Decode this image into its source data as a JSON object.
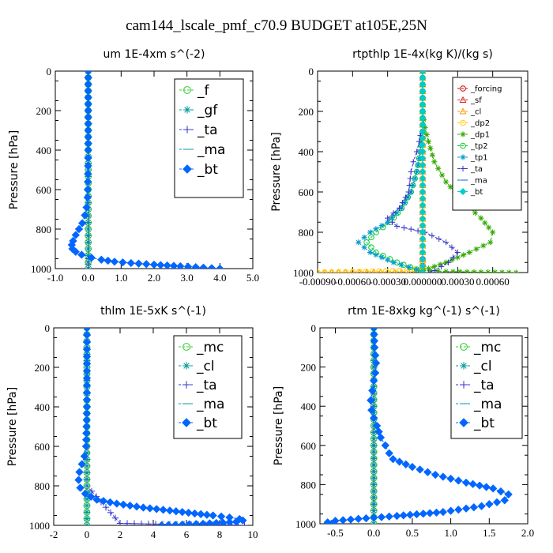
{
  "page": {
    "title": "cam144_lscale_pmf_c70.9  BUDGET at105E,25N"
  },
  "chart_data": [
    {
      "type": "line",
      "title": "um  1E-4xm s^(-2)",
      "ylabel": "Pressure [hPa]",
      "xlim": [
        -1.0,
        5.0
      ],
      "ylim": [
        1000,
        0
      ],
      "xticks": [
        "-1.0",
        "0.0",
        "1.0",
        "2.0",
        "3.0",
        "4.0",
        "5.0"
      ],
      "xtick_values": [
        -1,
        0,
        1,
        2,
        3,
        4,
        5
      ],
      "yticks": [
        "0",
        "200",
        "400",
        "600",
        "800",
        "1000"
      ],
      "ytick_values": [
        0,
        200,
        400,
        600,
        800,
        1000
      ],
      "legend_position": "top-right",
      "legend_font": "large",
      "series": [
        {
          "name": "_f",
          "color": "#33cc33",
          "marker": "circle",
          "x": [
            0.0,
            0.0,
            0.0,
            0.0,
            0.0,
            0.0,
            0.0,
            0.0,
            0.0,
            0.0,
            0.0
          ],
          "y": [
            0,
            100,
            200,
            300,
            400,
            500,
            600,
            700,
            800,
            900,
            1000
          ]
        },
        {
          "name": "_gf",
          "color": "#009999",
          "marker": "star",
          "x": [
            0.0,
            0.0,
            0.0,
            0.0,
            0.0,
            0.0,
            0.0,
            0.0,
            0.0,
            0.0,
            0.0
          ],
          "y": [
            0,
            100,
            200,
            300,
            400,
            500,
            600,
            700,
            800,
            900,
            1000
          ]
        },
        {
          "name": "_ta",
          "color": "#3333cc",
          "marker": "plus",
          "x": [
            0.0,
            0.0,
            0.0,
            0.0,
            0.0,
            0.0,
            0.0,
            0.0,
            0.0
          ],
          "y": [
            0,
            200,
            400,
            600,
            800,
            900,
            950,
            980,
            1000
          ]
        },
        {
          "name": "_ma",
          "color": "#009999",
          "marker": "dash",
          "x": [
            0.0,
            0.0,
            0.0,
            0.0,
            0.0,
            0.0,
            0.0,
            0.0,
            0.0,
            0.0,
            0.0
          ],
          "y": [
            0,
            100,
            200,
            300,
            400,
            500,
            600,
            700,
            800,
            900,
            1000
          ]
        },
        {
          "name": "_bt",
          "color": "#0066ff",
          "marker": "diamond",
          "x": [
            0.0,
            0.0,
            0.0,
            -0.01,
            -0.02,
            -0.05,
            -0.1,
            -0.18,
            -0.28,
            -0.38,
            -0.46,
            -0.5,
            -0.48,
            -0.38,
            -0.2,
            0.1,
            0.4,
            0.8,
            1.3,
            2.0,
            2.8,
            3.5,
            4.0
          ],
          "y": [
            0,
            200,
            400,
            560,
            640,
            690,
            730,
            770,
            800,
            830,
            860,
            880,
            900,
            915,
            930,
            945,
            955,
            965,
            972,
            980,
            988,
            995,
            1000
          ]
        }
      ]
    },
    {
      "type": "line",
      "title": "rtpthlp  1E-4x(kg K)/(kg s)",
      "ylabel": "Pressure [hPa]",
      "xlim": [
        -0.0009,
        0.0009
      ],
      "ylim": [
        1000,
        0
      ],
      "xticks": [
        "-0.00090",
        "-0.00060",
        "-0.00030",
        "0.000000",
        "0.00030",
        "0.00060"
      ],
      "xtick_values": [
        -0.0009,
        -0.0006,
        -0.0003,
        0.0,
        0.0003,
        0.0006
      ],
      "yticks": [
        "0",
        "200",
        "400",
        "600",
        "800",
        "1000"
      ],
      "ytick_values": [
        0,
        200,
        400,
        600,
        800,
        1000
      ],
      "legend_position": "top-right",
      "legend_font": "small",
      "series": [
        {
          "name": "_forcing",
          "color": "#cc0000",
          "marker": "circle",
          "x": [
            0,
            0,
            0,
            0,
            0,
            0,
            0,
            0,
            0,
            0,
            0
          ],
          "y": [
            0,
            100,
            200,
            300,
            400,
            500,
            600,
            700,
            800,
            900,
            1000
          ]
        },
        {
          "name": "_sf",
          "color": "#dd2222",
          "marker": "triangle",
          "x": [
            0,
            0,
            0,
            0,
            0,
            0,
            0,
            0,
            0,
            0,
            0
          ],
          "y": [
            0,
            100,
            200,
            300,
            400,
            500,
            600,
            700,
            800,
            900,
            1000
          ]
        },
        {
          "name": "_cl",
          "color": "#ff9900",
          "marker": "triangle",
          "x": [
            0,
            0,
            0,
            0,
            0,
            0,
            0,
            0,
            0,
            -0.0003,
            -0.0009
          ],
          "y": [
            0,
            200,
            400,
            600,
            800,
            900,
            950,
            980,
            995,
            998,
            1000
          ]
        },
        {
          "name": "_dp2",
          "color": "#ffcc00",
          "marker": "circle",
          "x": [
            0,
            0,
            0,
            0,
            0,
            0,
            0,
            0,
            -0.0002,
            -0.0006,
            -0.0009
          ],
          "y": [
            0,
            200,
            400,
            600,
            800,
            900,
            950,
            980,
            992,
            997,
            1000
          ]
        },
        {
          "name": "_dp1",
          "color": "#33aa00",
          "marker": "star",
          "x": [
            0,
            0,
            2e-05,
            5e-05,
            0.0001,
            0.0002,
            0.00035,
            0.0005,
            0.0006,
            0.00058,
            0.0004,
            0.0002,
            5e-05,
            0,
            0.0002,
            0.0008
          ],
          "y": [
            0,
            200,
            280,
            350,
            450,
            550,
            650,
            730,
            800,
            850,
            900,
            950,
            980,
            990,
            995,
            1000
          ]
        },
        {
          "name": "_tp2",
          "color": "#00cc33",
          "marker": "circle",
          "x": [
            0,
            0,
            -2e-05,
            -5e-05,
            -0.0001,
            -0.00018,
            -0.00028,
            -0.0004,
            -0.00048,
            -0.0004,
            -0.00022,
            -5e-05,
            0
          ],
          "y": [
            0,
            300,
            400,
            500,
            600,
            680,
            750,
            800,
            850,
            900,
            950,
            985,
            1000
          ]
        },
        {
          "name": "_tp1",
          "color": "#0099cc",
          "marker": "star",
          "x": [
            0,
            0,
            -2e-05,
            -5e-05,
            -0.0001,
            -0.00018,
            -0.0003,
            -0.00045,
            -0.00055,
            -0.00045,
            -0.00025,
            -5e-05,
            0
          ],
          "y": [
            0,
            300,
            400,
            500,
            600,
            680,
            750,
            800,
            850,
            900,
            950,
            985,
            1000
          ]
        },
        {
          "name": "_ta",
          "color": "#3333cc",
          "marker": "plus",
          "x": [
            0,
            0,
            -2e-05,
            -3e-05,
            -5e-05,
            -8e-05,
            -0.0001,
            -0.00012,
            -0.0002,
            -0.0003,
            -0.00022,
            2e-05,
            0.0002,
            0.0003,
            0.00022,
            0.0001,
            5e-05
          ],
          "y": [
            0,
            300,
            320,
            350,
            400,
            450,
            500,
            600,
            680,
            730,
            770,
            800,
            850,
            900,
            950,
            990,
            1000
          ]
        },
        {
          "name": "_ma",
          "color": "#0066cc",
          "marker": "dash",
          "x": [
            0,
            0,
            0,
            0,
            0,
            0
          ],
          "y": [
            0,
            200,
            400,
            600,
            800,
            1000
          ]
        },
        {
          "name": "_bt",
          "color": "#00cccc",
          "marker": "diamond",
          "x": [
            0,
            0,
            0,
            0,
            0,
            0
          ],
          "y": [
            0,
            200,
            400,
            600,
            800,
            1000
          ]
        }
      ]
    },
    {
      "type": "line",
      "title": "thlm  1E-5xK s^(-1)",
      "ylabel": "Pressure [hPa]",
      "xlim": [
        -2,
        10
      ],
      "ylim": [
        1000,
        0
      ],
      "xticks": [
        "-2",
        "0",
        "2",
        "4",
        "6",
        "8",
        "10"
      ],
      "xtick_values": [
        -2,
        0,
        2,
        4,
        6,
        8,
        10
      ],
      "yticks": [
        "0",
        "200",
        "400",
        "600",
        "800",
        "1000"
      ],
      "ytick_values": [
        0,
        200,
        400,
        600,
        800,
        1000
      ],
      "legend_position": "top-right",
      "legend_font": "large",
      "series": [
        {
          "name": "_mc",
          "color": "#33cc33",
          "marker": "circle",
          "x": [
            0,
            0,
            0,
            0,
            0,
            0,
            0,
            0,
            0,
            0,
            0
          ],
          "y": [
            0,
            100,
            200,
            300,
            400,
            500,
            600,
            700,
            800,
            900,
            1000
          ]
        },
        {
          "name": "_cl",
          "color": "#009999",
          "marker": "star",
          "x": [
            0,
            0,
            0,
            0,
            0,
            0,
            0,
            0,
            0,
            0,
            0
          ],
          "y": [
            0,
            100,
            200,
            300,
            400,
            500,
            600,
            700,
            800,
            900,
            1000
          ]
        },
        {
          "name": "_ta",
          "color": "#3333cc",
          "marker": "plus",
          "x": [
            0,
            0,
            0,
            0,
            0,
            2,
            5,
            8,
            9.5
          ],
          "y": [
            0,
            200,
            400,
            600,
            800,
            990,
            995,
            998,
            1000
          ]
        },
        {
          "name": "_ma",
          "color": "#009999",
          "marker": "dash",
          "x": [
            0,
            0,
            0,
            0,
            0,
            0
          ],
          "y": [
            0,
            200,
            400,
            600,
            800,
            1000
          ]
        },
        {
          "name": "_bt",
          "color": "#0066ff",
          "marker": "diamond",
          "x": [
            0,
            0,
            -0.05,
            -0.15,
            -0.3,
            -0.45,
            -0.5,
            -0.4,
            -0.1,
            0.6,
            1.8,
            3.4,
            5.0,
            6.5,
            7.6,
            8.6,
            9.2,
            9.4,
            9.0,
            7.0,
            4.5
          ],
          "y": [
            0,
            400,
            600,
            650,
            690,
            730,
            770,
            810,
            840,
            870,
            890,
            910,
            925,
            940,
            950,
            960,
            968,
            975,
            982,
            992,
            1000
          ]
        }
      ]
    },
    {
      "type": "line",
      "title": "rtm  1E-8xkg kg^(-1) s^(-1)",
      "ylabel": "Pressure [hPa]",
      "xlim": [
        -0.7,
        2.0
      ],
      "ylim": [
        1000,
        0
      ],
      "xticks": [
        "-0.5",
        "0.0",
        "0.5",
        "1.0",
        "1.5",
        "2.0"
      ],
      "xtick_values": [
        -0.5,
        0.0,
        0.5,
        1.0,
        1.5,
        2.0
      ],
      "yticks": [
        "0",
        "200",
        "400",
        "600",
        "800",
        "1000"
      ],
      "ytick_values": [
        0,
        200,
        400,
        600,
        800,
        1000
      ],
      "legend_position": "top-right",
      "legend_font": "large",
      "series": [
        {
          "name": "_mc",
          "color": "#33cc33",
          "marker": "circle",
          "x": [
            0,
            0,
            0,
            0,
            0,
            0,
            0,
            0,
            0,
            0,
            0
          ],
          "y": [
            0,
            100,
            200,
            300,
            400,
            500,
            600,
            700,
            800,
            900,
            1000
          ]
        },
        {
          "name": "_cl",
          "color": "#009999",
          "marker": "star",
          "x": [
            0,
            0,
            0,
            0,
            0,
            0,
            0,
            0,
            0,
            0,
            0
          ],
          "y": [
            0,
            100,
            200,
            300,
            400,
            500,
            600,
            700,
            800,
            900,
            1000
          ]
        },
        {
          "name": "_ta",
          "color": "#3333cc",
          "marker": "plus",
          "x": [
            0,
            0,
            0,
            0,
            0,
            0
          ],
          "y": [
            0,
            200,
            400,
            600,
            800,
            1000
          ]
        },
        {
          "name": "_ma",
          "color": "#009999",
          "marker": "dash",
          "x": [
            0,
            0,
            0,
            0,
            0,
            0
          ],
          "y": [
            0,
            200,
            400,
            600,
            800,
            1000
          ]
        },
        {
          "name": "_bt",
          "color": "#0066ff",
          "marker": "diamond",
          "x": [
            0,
            0.01,
            0.03,
            0.02,
            0.0,
            -0.02,
            -0.04,
            -0.03,
            0.0,
            0.04,
            0.09,
            0.15,
            0.2,
            0.25,
            0.5,
            0.8,
            1.2,
            1.55,
            1.75,
            1.7,
            1.4,
            0.9,
            0.3,
            -0.2,
            -0.5,
            -0.6,
            -0.55
          ],
          "y": [
            0,
            100,
            180,
            230,
            270,
            320,
            370,
            420,
            460,
            500,
            560,
            600,
            640,
            670,
            710,
            750,
            790,
            820,
            850,
            880,
            910,
            940,
            960,
            975,
            985,
            993,
            1000
          ]
        }
      ]
    }
  ]
}
